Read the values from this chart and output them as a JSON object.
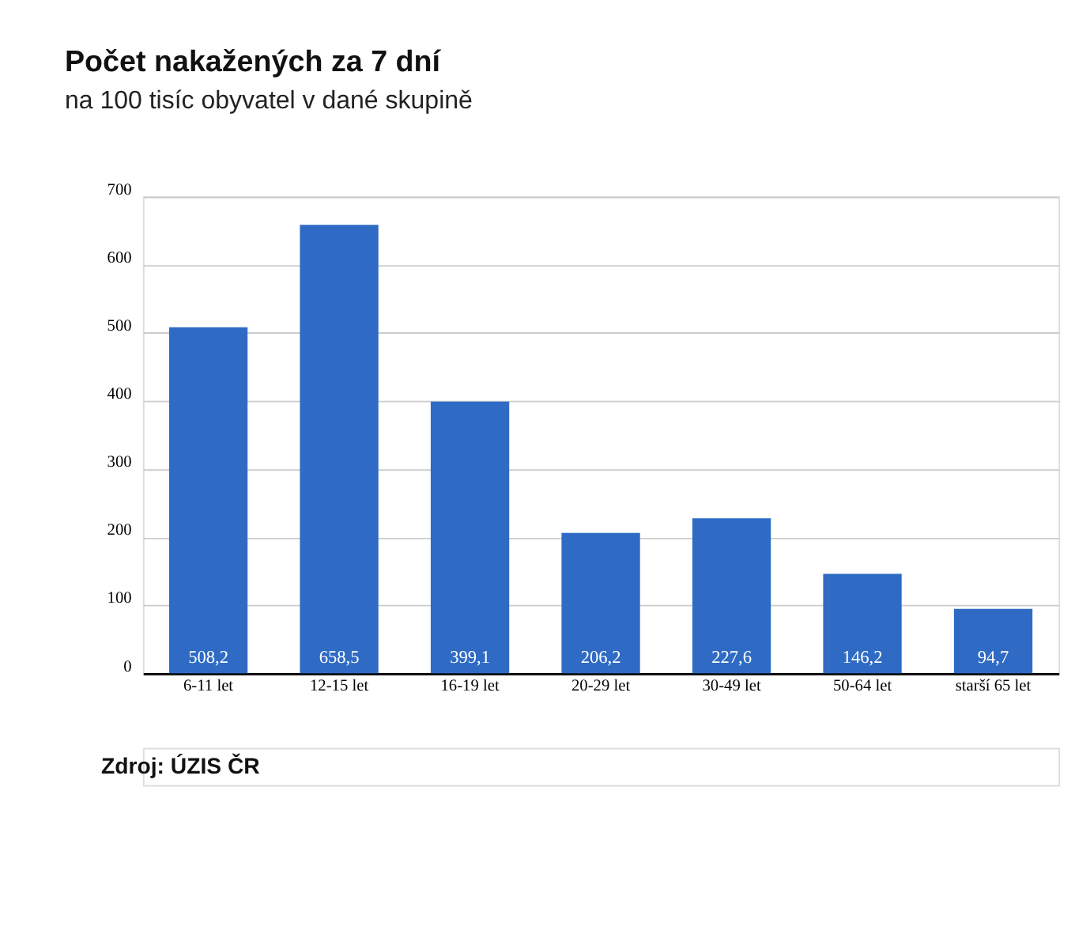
{
  "chart_data": {
    "type": "bar",
    "title": "Počet nakažených za 7 dní",
    "subtitle": "na 100 tisíc obyvatel v dané skupině",
    "categories": [
      "6-11 let",
      "12-15 let",
      "16-19 let",
      "20-29 let",
      "30-49 let",
      "50-64 let",
      "starší 65 let"
    ],
    "values": [
      508.2,
      658.5,
      399.1,
      206.2,
      227.6,
      146.2,
      94.7
    ],
    "value_labels": [
      "508,2",
      "658,5",
      "399,1",
      "206,2",
      "227,6",
      "146,2",
      "94,7"
    ],
    "color": "#2f6bc4",
    "ylim": [
      0,
      700
    ],
    "yticks": [
      0,
      100,
      200,
      300,
      400,
      500,
      600,
      700
    ],
    "grid": "y",
    "annotations": [
      "Zdroj: ÚZIS ČR"
    ]
  }
}
